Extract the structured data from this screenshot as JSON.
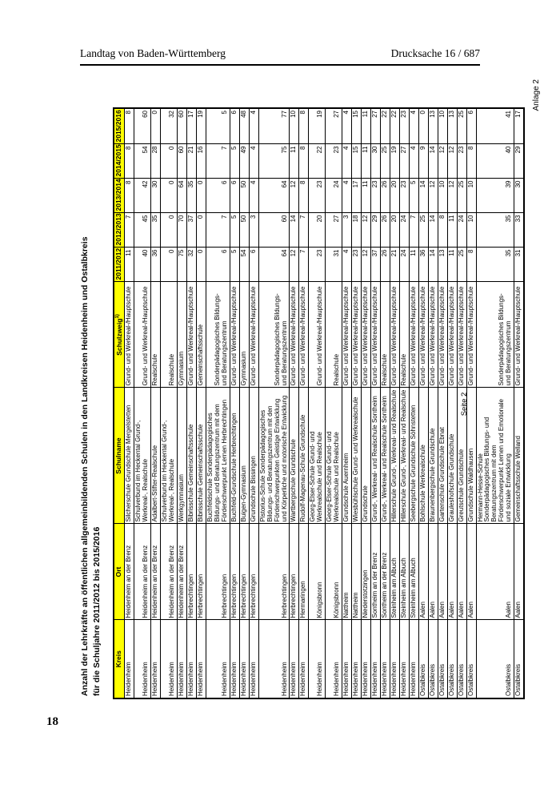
{
  "page": {
    "header_left": "Landtag von Baden-Württemberg",
    "header_right": "Drucksache 16 / 687",
    "page_number": "18",
    "annex_label": "Anlage 2",
    "sheet_label": "Seite 2"
  },
  "colors": {
    "table_header_bg": "#FFFF00"
  },
  "table": {
    "title_line1": "Anzahl der Lehrkräfte an öffentlichen allgemeinbildenden Schulen in den Landkreisen Heidenheim und Ostalbkreis",
    "title_line2": "für die Schuljahre 2011/2012 bis 2015/2016",
    "columns": [
      {
        "key": "kreis",
        "label": "Kreis"
      },
      {
        "key": "ort",
        "label": "Ort"
      },
      {
        "key": "schulname",
        "label": "Schulname"
      },
      {
        "key": "schulzweig",
        "label": "Schulzweig",
        "sup": "1)"
      },
      {
        "key": "y0",
        "label": "2011/2012"
      },
      {
        "key": "y1",
        "label": "2012/2013"
      },
      {
        "key": "y2",
        "label": "2013/2014"
      },
      {
        "key": "y3",
        "label": "2014/2015"
      },
      {
        "key": "y4",
        "label": "2015/2016"
      }
    ],
    "rows": [
      {
        "kreis": "Heidenheim",
        "ort": "Heidenheim an der Brenz",
        "schulname": "Silcherschule Grundschule Mergelstetten",
        "schulzweig": "Grund- und Werkreal-/Hauptschule",
        "values": [
          11,
          7,
          8,
          8,
          8
        ]
      },
      {
        "kreis": "Heidenheim",
        "ort": "Heidenheim an der Brenz",
        "schulname": "Schulverbund im Heckental Grund-, Werkreal-, Realschule",
        "schulzweig": "Grund- und Werkreal-/Hauptschule",
        "values": [
          40,
          45,
          42,
          54,
          60
        ]
      },
      {
        "kreis": "Heidenheim",
        "ort": "Heidenheim an der Brenz",
        "schulname": "Adalbert-Stifter-Realschule",
        "schulzweig": "Realschule",
        "values": [
          36,
          35,
          30,
          28,
          0
        ]
      },
      {
        "kreis": "Heidenheim",
        "ort": "Heidenheim an der Brenz",
        "schulname": "Schulverbund im Heckental Grund-, Werkreal-, Realschule",
        "schulzweig": "Realschule",
        "values": [
          0,
          0,
          0,
          0,
          32
        ]
      },
      {
        "kreis": "Heidenheim",
        "ort": "Heidenheim an der Brenz",
        "schulname": "Werkgymnasium",
        "schulzweig": "Gymnasium",
        "values": [
          75,
          70,
          64,
          60,
          60
        ]
      },
      {
        "kreis": "Heidenheim",
        "ort": "Herbrechtingen",
        "schulname": "Bibrisschule Gemeinschaftsschule",
        "schulzweig": "Grund- und Werkreal-/Hauptschule",
        "values": [
          32,
          37,
          35,
          21,
          17
        ]
      },
      {
        "kreis": "Heidenheim",
        "ort": "Herbrechtingen",
        "schulname": "Bibrisschule Gemeinschaftsschule",
        "schulzweig": "Gemeinschaftsschule",
        "values": [
          0,
          0,
          0,
          16,
          19
        ]
      },
      {
        "kreis": "Heidenheim",
        "ort": "Herbrechtingen",
        "schulname": "Buchfeldschule Sonderpädagogisches Bildungs- und Beratungszentrum mit dem Förderschwerpunkt Lernen Herbrechtingen",
        "schulzweig": "Sonderpädagogisches Bildungs- und Beratungszentrum",
        "values": [
          6,
          7,
          6,
          7,
          5
        ]
      },
      {
        "kreis": "Heidenheim",
        "ort": "Herbrechtingen",
        "schulname": "Buchfeld-Grundschule Herbrechtingen",
        "schulzweig": "Grund- und Werkreal-/Hauptschule",
        "values": [
          5,
          5,
          6,
          5,
          6
        ]
      },
      {
        "kreis": "Heidenheim",
        "ort": "Herbrechtingen",
        "schulname": "Buigen-Gymnasium",
        "schulzweig": "Gymnasium",
        "values": [
          54,
          50,
          50,
          49,
          48
        ]
      },
      {
        "kreis": "Heidenheim",
        "ort": "Herbrechtingen",
        "schulname": "Grundschule Bissingen",
        "schulzweig": "Grund- und Werkreal-/Hauptschule",
        "values": [
          6,
          3,
          4,
          4,
          4
        ]
      },
      {
        "kreis": "Heidenheim",
        "ort": "Herbrechtingen",
        "schulname": "Pistorius-Schule Sonderpädagogisches Bildungs- und Beratungszentrum mit den Förderschwerpunkten Geistige Entwicklung und Körperliche und motorische Entwicklung",
        "schulzweig": "Sonderpädagogisches Bildungs- und Beratungszentrum",
        "values": [
          64,
          60,
          64,
          75,
          77
        ]
      },
      {
        "kreis": "Heidenheim",
        "ort": "Herbrechtingen",
        "schulname": "Wartbergschule Grundschule",
        "schulzweig": "Grund- und Werkreal-/Hauptschule",
        "values": [
          12,
          14,
          12,
          11,
          10
        ]
      },
      {
        "kreis": "Heidenheim",
        "ort": "Hermaringen",
        "schulname": "Rudolf-Magenau-Schule Grundschule",
        "schulzweig": "Grund- und Werkreal-/Hauptschule",
        "values": [
          7,
          7,
          8,
          8,
          8
        ]
      },
      {
        "kreis": "Heidenheim",
        "ort": "Königsbronn",
        "schulname": "Georg-Elser-Schule Grund- und Werkrealschule und Realschule",
        "schulzweig": "Grund- und Werkreal-/Hauptschule",
        "values": [
          23,
          20,
          23,
          22,
          19
        ]
      },
      {
        "kreis": "Heidenheim",
        "ort": "Königsbronn",
        "schulname": "Georg-Elser-Schule Grund- und Werkrealschule und Realschule",
        "schulzweig": "Realschule",
        "values": [
          31,
          27,
          24,
          23,
          27
        ]
      },
      {
        "kreis": "Heidenheim",
        "ort": "Nattheim",
        "schulname": "Grundschule Auernheim",
        "schulzweig": "Grund- und Werkreal-/Hauptschule",
        "values": [
          4,
          3,
          4,
          4,
          4
        ]
      },
      {
        "kreis": "Heidenheim",
        "ort": "Nattheim",
        "schulname": "Wiesbühlschule Grund- und Werkrealschule",
        "schulzweig": "Grund- und Werkreal-/Hauptschule",
        "values": [
          23,
          18,
          17,
          15,
          15
        ]
      },
      {
        "kreis": "Heidenheim",
        "ort": "Niederstotzingen",
        "schulname": "Grundschule",
        "schulzweig": "Grund- und Werkreal-/Hauptschule",
        "values": [
          12,
          12,
          11,
          11,
          11
        ]
      },
      {
        "kreis": "Heidenheim",
        "ort": "Sontheim an der Brenz",
        "schulname": "Grund-, Werkreal- und Realschule Sontheim",
        "schulzweig": "Grund- und Werkreal-/Hauptschule",
        "values": [
          37,
          29,
          23,
          30,
          27
        ]
      },
      {
        "kreis": "Heidenheim",
        "ort": "Sontheim an der Brenz",
        "schulname": "Grund-, Werkreal- und Realschule Sontheim",
        "schulzweig": "Realschule",
        "values": [
          26,
          26,
          26,
          25,
          22
        ]
      },
      {
        "kreis": "Heidenheim",
        "ort": "Steinheim am Albuch",
        "schulname": "Hillerschule Grund-, Werkreal- und Realschule",
        "schulzweig": "Grund- und Werkreal-/Hauptschule",
        "values": [
          21,
          20,
          20,
          19,
          22
        ]
      },
      {
        "kreis": "Heidenheim",
        "ort": "Steinheim am Albuch",
        "schulname": "Hillerschule Grund-, Werkreal- und Realschule",
        "schulzweig": "Realschule",
        "values": [
          24,
          24,
          23,
          27,
          23
        ]
      },
      {
        "kreis": "Heidenheim",
        "ort": "Steinheim am Albuch",
        "schulname": "Seebergschule Grundschule Söhnstetten",
        "schulzweig": "Grund- und Werkreal-/Hauptschule",
        "values": [
          11,
          7,
          5,
          4,
          4
        ]
      },
      {
        "kreis": "Ostalbkreis",
        "ort": "Aalen",
        "schulname": "Bohlschule Werkrealschule",
        "schulzweig": "Grund- und Werkreal-/Hauptschule",
        "values": [
          36,
          25,
          14,
          9,
          0
        ]
      },
      {
        "kreis": "Ostalbkreis",
        "ort": "Aalen",
        "schulname": "Braunenbergschule Grundschule",
        "schulzweig": "Grund- und Werkreal-/Hauptschule",
        "values": [
          14,
          14,
          12,
          14,
          13
        ]
      },
      {
        "kreis": "Ostalbkreis",
        "ort": "Aalen",
        "schulname": "Gartenschule Grundschule Ebnat",
        "schulzweig": "Grund- und Werkreal-/Hauptschule",
        "values": [
          13,
          8,
          10,
          12,
          10
        ]
      },
      {
        "kreis": "Ostalbkreis",
        "ort": "Aalen",
        "schulname": "Grauleshofschule Grundschule",
        "schulzweig": "Grund- und Werkreal-/Hauptschule",
        "values": [
          11,
          11,
          12,
          12,
          13
        ]
      },
      {
        "kreis": "Ostalbkreis",
        "ort": "Aalen",
        "schulname": "Greutschule Grundschule",
        "schulzweig": "Grund- und Werkreal-/Hauptschule",
        "values": [
          25,
          24,
          25,
          23,
          25
        ]
      },
      {
        "kreis": "Ostalbkreis",
        "ort": "Aalen",
        "schulname": "Grundschule Waldhausen",
        "schulzweig": "Grund- und Werkreal-/Hauptschule",
        "values": [
          8,
          10,
          10,
          8,
          6
        ]
      },
      {
        "kreis": "Ostalbkreis",
        "ort": "Aalen",
        "schulname": "Hermann-Hesse-Schule Sonderpädagogisches Bildungs- und Beratungszentrum mit dem Förderschwerpunkt Lernen und Emotionale und soziale Entwicklung",
        "schulzweig": "Sonderpädagogisches Bildungs- und Beratungszentrum",
        "values": [
          35,
          35,
          39,
          40,
          41
        ]
      },
      {
        "kreis": "Ostalbkreis",
        "ort": "Aalen",
        "schulname": "Gemeinschaftsschule Welland",
        "schulzweig": "Grund- und Werkreal-/Hauptschule",
        "values": [
          31,
          33,
          30,
          29,
          17
        ]
      }
    ]
  }
}
